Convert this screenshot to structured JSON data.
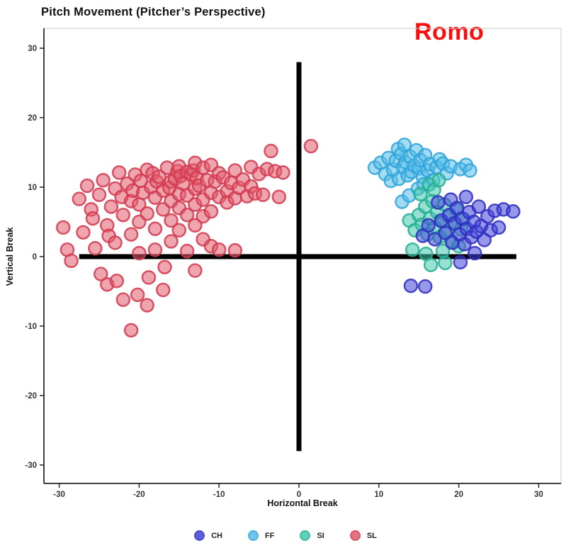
{
  "chart_data": {
    "type": "scatter",
    "title": "Pitch Movement (Pitcher’s Perspective)",
    "annotation": "Romo",
    "annotation_color": "#fb0d0d",
    "xlabel": "Horizontal Break",
    "ylabel": "Vertical Break",
    "xlim": [
      -32,
      33
    ],
    "ylim": [
      -33,
      33
    ],
    "xticks": [
      -30,
      -20,
      -10,
      0,
      10,
      20,
      30
    ],
    "yticks": [
      -30,
      -20,
      -10,
      0,
      10,
      20,
      30
    ],
    "grid": false,
    "legend_position": "bottom",
    "crosshair": {
      "y_value": 0,
      "x_span": [
        -27.5,
        27.2
      ],
      "x_value": 0,
      "y_span": [
        -28,
        28
      ],
      "color": "#000000",
      "thickness": 7
    },
    "series": [
      {
        "name": "CH",
        "color": "#4343d9",
        "stroke": "#2e2ec0",
        "points": [
          [
            14.0,
            -4.2
          ],
          [
            15.5,
            3.0
          ],
          [
            15.8,
            -4.3
          ],
          [
            16.2,
            4.5
          ],
          [
            17.0,
            2.5
          ],
          [
            17.4,
            7.8
          ],
          [
            17.8,
            5.2
          ],
          [
            18.3,
            3.4
          ],
          [
            18.8,
            6.0
          ],
          [
            19.0,
            8.2
          ],
          [
            19.2,
            2.0
          ],
          [
            19.5,
            4.8
          ],
          [
            19.8,
            7.0
          ],
          [
            20.1,
            3.2
          ],
          [
            20.2,
            -0.8
          ],
          [
            20.4,
            5.5
          ],
          [
            20.7,
            1.8
          ],
          [
            20.9,
            8.6
          ],
          [
            21.0,
            4.0
          ],
          [
            21.3,
            6.4
          ],
          [
            21.6,
            2.8
          ],
          [
            21.9,
            5.0
          ],
          [
            22.0,
            0.5
          ],
          [
            22.2,
            3.6
          ],
          [
            22.5,
            7.2
          ],
          [
            22.8,
            4.4
          ],
          [
            23.2,
            2.4
          ],
          [
            23.6,
            5.8
          ],
          [
            24.0,
            3.8
          ],
          [
            24.5,
            6.6
          ],
          [
            25.0,
            4.2
          ],
          [
            25.6,
            6.8
          ],
          [
            26.8,
            6.5
          ]
        ]
      },
      {
        "name": "FF",
        "color": "#57bde9",
        "stroke": "#2fa3d9",
        "points": [
          [
            9.5,
            12.8
          ],
          [
            10.2,
            13.5
          ],
          [
            10.8,
            11.9
          ],
          [
            11.2,
            14.2
          ],
          [
            11.5,
            10.9
          ],
          [
            11.8,
            12.5
          ],
          [
            12.1,
            13.8
          ],
          [
            12.4,
            15.5
          ],
          [
            12.5,
            11.2
          ],
          [
            12.8,
            14.8
          ],
          [
            12.9,
            7.9
          ],
          [
            13.0,
            12.9
          ],
          [
            13.2,
            16.1
          ],
          [
            13.3,
            13.6
          ],
          [
            13.6,
            11.7
          ],
          [
            13.8,
            8.8
          ],
          [
            13.9,
            14.4
          ],
          [
            14.1,
            12.2
          ],
          [
            14.4,
            13.1
          ],
          [
            14.7,
            15.3
          ],
          [
            14.9,
            9.8
          ],
          [
            15.0,
            12.7
          ],
          [
            15.2,
            13.9
          ],
          [
            15.5,
            11.5
          ],
          [
            15.6,
            10.4
          ],
          [
            15.8,
            14.6
          ],
          [
            16.1,
            12.4
          ],
          [
            16.4,
            13.3
          ],
          [
            16.8,
            11.0
          ],
          [
            17.2,
            12.9
          ],
          [
            17.6,
            14.0
          ],
          [
            18.0,
            13.4
          ],
          [
            18.5,
            12.0
          ],
          [
            19.0,
            13.0
          ],
          [
            20.2,
            12.6
          ],
          [
            20.9,
            13.2
          ],
          [
            21.4,
            12.4
          ]
        ]
      },
      {
        "name": "SI",
        "color": "#41c9ae",
        "stroke": "#27ad93",
        "points": [
          [
            13.8,
            5.2
          ],
          [
            14.2,
            1.0
          ],
          [
            14.5,
            3.8
          ],
          [
            15.0,
            6.0
          ],
          [
            15.2,
            9.0
          ],
          [
            15.4,
            4.6
          ],
          [
            15.8,
            7.2
          ],
          [
            15.9,
            0.4
          ],
          [
            16.1,
            3.2
          ],
          [
            16.3,
            10.4
          ],
          [
            16.4,
            5.5
          ],
          [
            16.5,
            -1.2
          ],
          [
            16.7,
            8.0
          ],
          [
            16.9,
            9.6
          ],
          [
            17.0,
            4.2
          ],
          [
            17.3,
            6.4
          ],
          [
            17.5,
            11.0
          ],
          [
            17.6,
            2.8
          ],
          [
            17.9,
            5.0
          ],
          [
            18.0,
            0.8
          ],
          [
            18.2,
            7.5
          ],
          [
            18.3,
            -0.9
          ],
          [
            18.5,
            3.6
          ],
          [
            18.8,
            5.8
          ],
          [
            19.1,
            2.2
          ],
          [
            19.4,
            4.8
          ],
          [
            19.7,
            6.8
          ],
          [
            20.0,
            1.5
          ],
          [
            20.3,
            3.9
          ],
          [
            20.6,
            5.4
          ]
        ]
      },
      {
        "name": "SL",
        "color": "#e25b6c",
        "stroke": "#d13a50",
        "points": [
          [
            -29.5,
            4.2
          ],
          [
            -29.0,
            1.0
          ],
          [
            -28.5,
            -0.6
          ],
          [
            -27.5,
            8.3
          ],
          [
            -27.0,
            3.5
          ],
          [
            -26.5,
            10.2
          ],
          [
            -26.0,
            6.8
          ],
          [
            -25.8,
            5.5
          ],
          [
            -25.5,
            1.2
          ],
          [
            -25.0,
            8.9
          ],
          [
            -24.8,
            -2.5
          ],
          [
            -24.5,
            11.0
          ],
          [
            -24.0,
            4.5
          ],
          [
            -24.0,
            -4.0
          ],
          [
            -23.8,
            3.0
          ],
          [
            -23.5,
            7.2
          ],
          [
            -23.0,
            9.8
          ],
          [
            -23.0,
            2.0
          ],
          [
            -22.8,
            -3.5
          ],
          [
            -22.5,
            12.1
          ],
          [
            -22.2,
            8.6
          ],
          [
            -22.0,
            6.0
          ],
          [
            -22.0,
            -6.2
          ],
          [
            -21.5,
            10.5
          ],
          [
            -21.0,
            8.0
          ],
          [
            -21.0,
            3.2
          ],
          [
            -21.0,
            -10.6
          ],
          [
            -20.8,
            9.5
          ],
          [
            -20.5,
            11.8
          ],
          [
            -20.2,
            -5.5
          ],
          [
            -20.0,
            7.5
          ],
          [
            -20.0,
            5.0
          ],
          [
            -20.0,
            0.5
          ],
          [
            -19.8,
            10.9
          ],
          [
            -19.5,
            9.2
          ],
          [
            -19.0,
            12.5
          ],
          [
            -19.0,
            6.2
          ],
          [
            -19.0,
            -7.0
          ],
          [
            -18.8,
            -3.0
          ],
          [
            -18.5,
            10.0
          ],
          [
            -18.3,
            12.0
          ],
          [
            -18.0,
            8.5
          ],
          [
            -18.0,
            4.0
          ],
          [
            -18.0,
            1.0
          ],
          [
            -17.8,
            10.8
          ],
          [
            -17.5,
            11.5
          ],
          [
            -17.0,
            9.5
          ],
          [
            -17.0,
            6.8
          ],
          [
            -17.0,
            -4.8
          ],
          [
            -16.8,
            -1.5
          ],
          [
            -16.5,
            12.8
          ],
          [
            -16.2,
            9.9
          ],
          [
            -16.0,
            10.8
          ],
          [
            -16.0,
            8.0
          ],
          [
            -16.0,
            5.2
          ],
          [
            -16.0,
            2.2
          ],
          [
            -15.5,
            11.2
          ],
          [
            -15.2,
            12.3
          ],
          [
            -15.0,
            13.0
          ],
          [
            -15.0,
            9.0
          ],
          [
            -15.0,
            7.0
          ],
          [
            -15.0,
            3.8
          ],
          [
            -14.8,
            11.6
          ],
          [
            -14.5,
            10.5
          ],
          [
            -14.0,
            12.2
          ],
          [
            -14.0,
            8.8
          ],
          [
            -14.0,
            6.0
          ],
          [
            -14.0,
            0.8
          ],
          [
            -13.5,
            11.8
          ],
          [
            -13.2,
            12.4
          ],
          [
            -13.0,
            13.5
          ],
          [
            -13.0,
            9.8
          ],
          [
            -13.0,
            7.5
          ],
          [
            -13.0,
            4.5
          ],
          [
            -13.0,
            -2.0
          ],
          [
            -12.8,
            11.3
          ],
          [
            -12.5,
            10.2
          ],
          [
            -12.0,
            12.8
          ],
          [
            -12.0,
            8.2
          ],
          [
            -12.0,
            5.8
          ],
          [
            -12.0,
            2.5
          ],
          [
            -11.5,
            11.0
          ],
          [
            -11.0,
            13.2
          ],
          [
            -11.0,
            9.2
          ],
          [
            -11.0,
            6.5
          ],
          [
            -11.0,
            1.5
          ],
          [
            -10.5,
            10.8
          ],
          [
            -10.0,
            12.0
          ],
          [
            -10.0,
            8.6
          ],
          [
            -10.0,
            1.0
          ],
          [
            -9.5,
            11.4
          ],
          [
            -9.0,
            9.4
          ],
          [
            -9.0,
            7.8
          ],
          [
            -8.5,
            10.6
          ],
          [
            -8.0,
            12.4
          ],
          [
            -8.0,
            8.4
          ],
          [
            -8.0,
            0.9
          ],
          [
            -7.5,
            9.9
          ],
          [
            -7.0,
            11.1
          ],
          [
            -6.5,
            8.7
          ],
          [
            -6.0,
            10.1
          ],
          [
            -6.0,
            12.9
          ],
          [
            -5.5,
            9.1
          ],
          [
            -5.0,
            11.9
          ],
          [
            -4.5,
            8.9
          ],
          [
            -4.0,
            12.6
          ],
          [
            -3.5,
            15.2
          ],
          [
            -3.0,
            12.3
          ],
          [
            -2.5,
            8.6
          ],
          [
            -2.0,
            12.1
          ],
          [
            1.5,
            15.9
          ]
        ]
      }
    ]
  }
}
